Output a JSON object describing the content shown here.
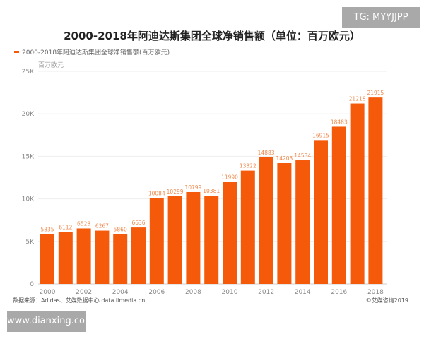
{
  "watermark_top": "TG: MYYJJPP",
  "watermark_bottom": "www.dianxing.com",
  "footer": {
    "source": "数据来源：Adidas、艾媒数据中心 data.iimedia.cn",
    "copyright": "©艾媒咨询2019"
  },
  "chart_data": {
    "type": "bar",
    "title": "2000-2018年阿迪达斯集团全球净销售额（单位：百万欧元）",
    "ylabel": "百万欧元",
    "xlabel": "",
    "ylim": [
      0,
      25000
    ],
    "yticks": [
      "0",
      "5K",
      "10K",
      "15K",
      "20K",
      "25K"
    ],
    "xticks": [
      "2000",
      "2002",
      "2004",
      "2006",
      "2008",
      "2010",
      "2012",
      "2014",
      "2016",
      "2018"
    ],
    "grid": true,
    "legend_position": "top-left",
    "color": "#f55a0a",
    "categories": [
      "2000",
      "2001",
      "2002",
      "2003",
      "2004",
      "2005",
      "2006",
      "2007",
      "2008",
      "2009",
      "2010",
      "2011",
      "2012",
      "2013",
      "2014",
      "2015",
      "2016",
      "2017",
      "2018"
    ],
    "series": [
      {
        "name": "2000-2018年阿迪达斯集团全球净销售额(百万欧元)",
        "values": [
          5835,
          6112,
          6523,
          6267,
          5860,
          6636,
          10084,
          10299,
          10799,
          10381,
          11990,
          13322,
          14883,
          14203,
          14534,
          16915,
          18483,
          21218,
          21915
        ]
      }
    ]
  }
}
